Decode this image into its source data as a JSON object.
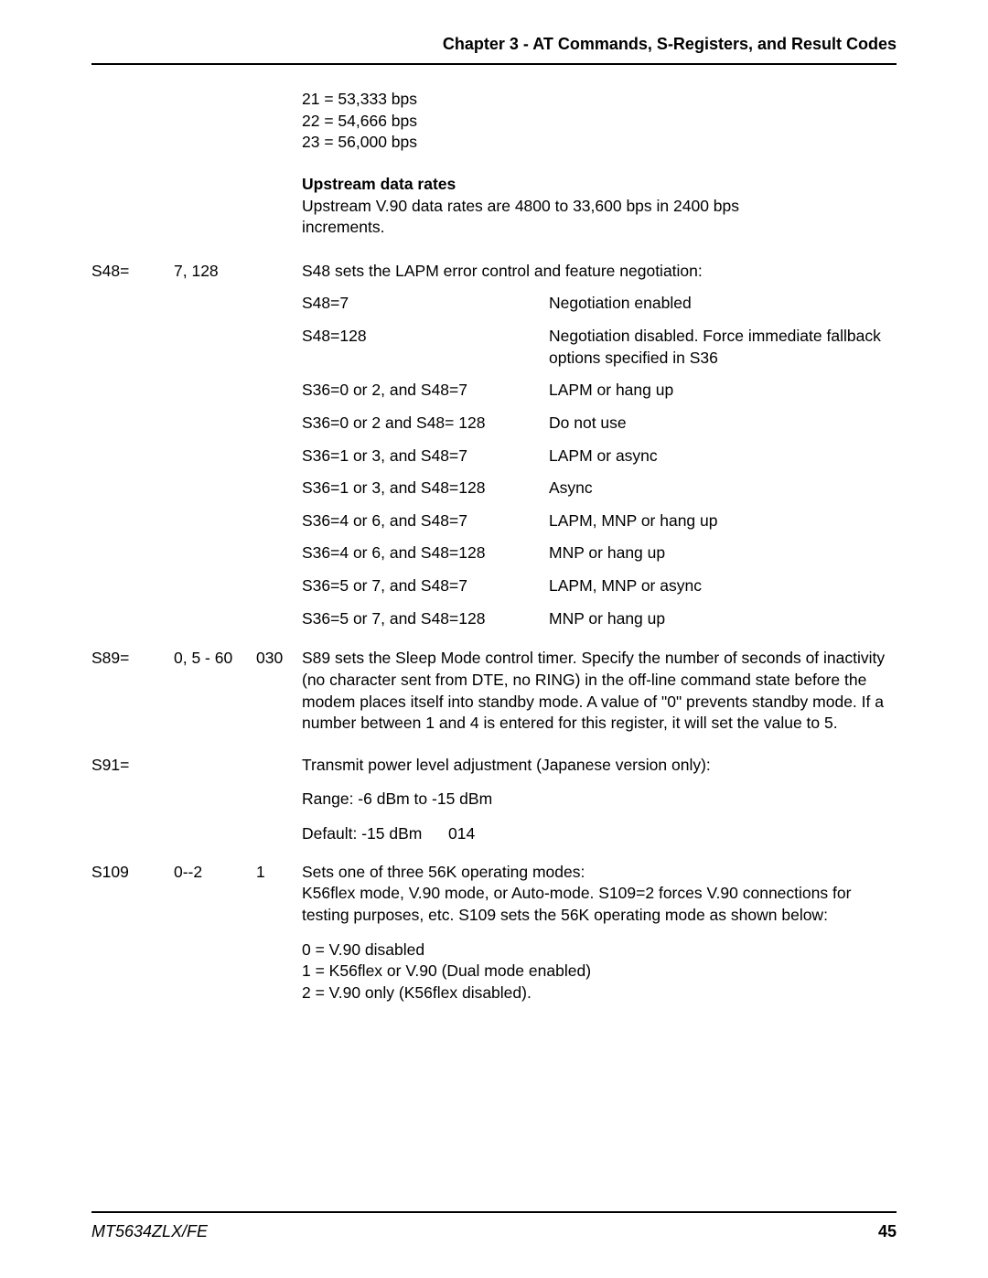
{
  "header_title": "Chapter 3 - AT Commands, S-Registers, and Result Codes",
  "pre_rates": {
    "r21": "21 = 53,333 bps",
    "r22": "22 = 54,666 bps",
    "r23": "23 = 56,000 bps"
  },
  "upstream": {
    "head_u": "U",
    "head_rest": "pstream data rates",
    "text": "Upstream V.90 data rates are 4800 to 33,600 bps in 2400 bps increments."
  },
  "s48": {
    "reg": "S48=",
    "range": "7, 128",
    "desc": "S48 sets the LAPM error control and feature negotiation:",
    "rows": [
      {
        "l": "S48=7",
        "r": "Negotiation enabled"
      },
      {
        "l": "S48=128",
        "r": "Negotiation disabled. Force immediate fallback options specified in S36"
      },
      {
        "l": "S36=0 or 2, and S48=7",
        "r": "LAPM or hang up"
      },
      {
        "l": "S36=0 or 2 and S48= 128",
        "r": "Do not use"
      },
      {
        "l": "S36=1 or 3, and S48=7",
        "r": "LAPM or async"
      },
      {
        "l": "S36=1 or 3, and S48=128",
        "r": "Async"
      },
      {
        "l": "S36=4 or 6, and S48=7",
        "r": "LAPM, MNP or hang up"
      },
      {
        "l": "S36=4 or 6, and S48=128",
        "r": "MNP or hang up"
      },
      {
        "l": "S36=5 or 7, and S48=7",
        "r": "LAPM, MNP or async"
      },
      {
        "l": "S36=5 or 7, and S48=128",
        "r": "MNP or hang up"
      }
    ]
  },
  "s89": {
    "reg": "S89=",
    "range": "0, 5 - 60",
    "def": "030",
    "desc": "S89 sets the Sleep Mode control timer. Specify the number of seconds of inactivity (no character sent from DTE, no RING) in the off-line command state before the modem places itself into standby mode. A value of \"0\" prevents standby mode. If a number between 1 and 4 is entered for this register, it will set the value to 5."
  },
  "s91": {
    "reg": "S91=",
    "desc": "Transmit power level adjustment (Japanese version only):",
    "range_line": "Range:  -6 dBm to -15 dBm",
    "default_label": "Default:",
    "default_val": "-15 dBm",
    "default_code": "014"
  },
  "s109": {
    "reg": "S109",
    "range": "0--2",
    "def": "1",
    "desc": "Sets one of three 56K operating modes:\nK56flex mode, V.90 mode, or Auto-mode. S109=2 forces V.90  connections for testing purposes, etc. S109 sets the 56K operating mode as shown below:",
    "opts": "0 = V.90 disabled\n1 = K56flex or V.90 (Dual mode enabled)\n2 = V.90 only (K56flex disabled)."
  },
  "footer": {
    "model": "MT5634ZLX/FE",
    "page": "45"
  }
}
